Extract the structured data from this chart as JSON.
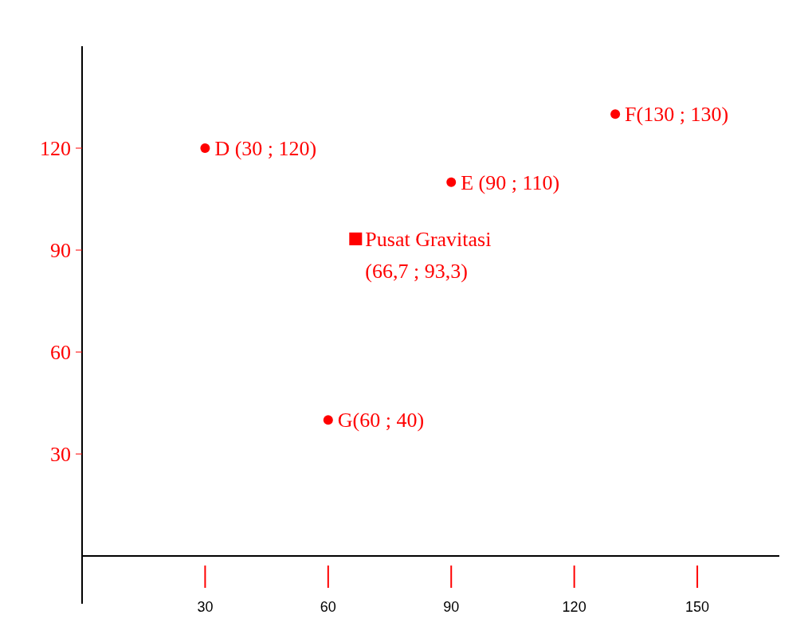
{
  "chart_data": {
    "type": "scatter",
    "xlim": [
      0,
      170
    ],
    "ylim": [
      0,
      150
    ],
    "xticks": [
      30,
      60,
      90,
      120,
      150
    ],
    "yticks": [
      30,
      60,
      90,
      120
    ],
    "grid": false,
    "series": [
      {
        "color": "#ff0000",
        "marker": "circle",
        "x": [
          30,
          90,
          130,
          60
        ],
        "values": [
          120,
          110,
          130,
          40
        ]
      },
      {
        "color": "#ff0000",
        "marker": "square",
        "x": [
          66.7
        ],
        "values": [
          93.3
        ]
      }
    ],
    "annotations": [
      {
        "text": "D (30 ; 120)",
        "x": 30,
        "y": 120
      },
      {
        "text": "E (90 ; 110)",
        "x": 90,
        "y": 110
      },
      {
        "text": "F(130 ; 130)",
        "x": 130,
        "y": 130
      },
      {
        "text": "G(60 ; 40)",
        "x": 60,
        "y": 40
      },
      {
        "text": "Pusat Gravitasi",
        "x": 66.7,
        "y": 93.3
      },
      {
        "text": "(66,7 ; 93,3)",
        "x": 66.7,
        "y": 93.3
      }
    ]
  }
}
